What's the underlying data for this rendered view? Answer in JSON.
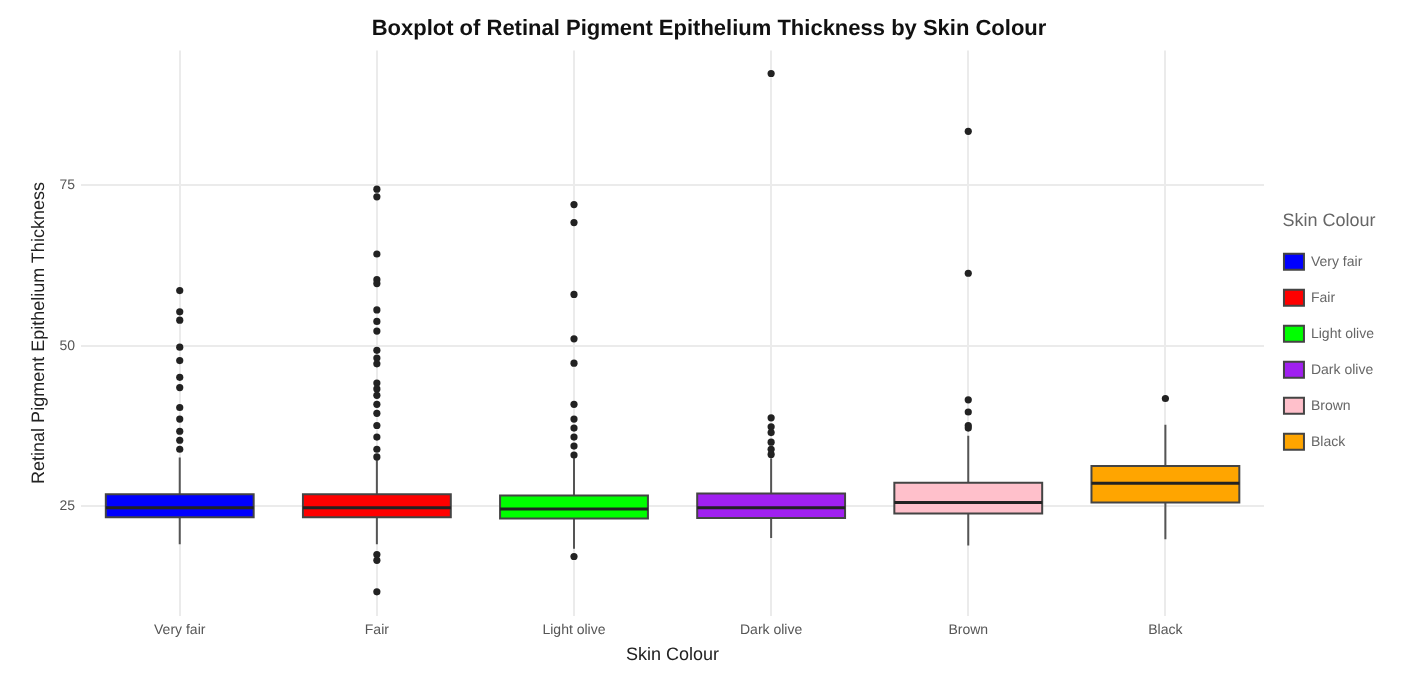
{
  "chart_data": {
    "type": "box",
    "title": "Boxplot of Retinal Pigment Epithelium Thickness by Skin Colour",
    "xlabel": "Skin Colour",
    "ylabel": "Retinal Pigment Epithelium Thickness",
    "legend_title": "Skin Colour",
    "legend": "right",
    "grid": true,
    "categories": [
      "Very fair",
      "Fair",
      "Light olive",
      "Dark olive",
      "Brown",
      "Black"
    ],
    "ylim": [
      8,
      96
    ],
    "yticks": [
      25,
      50,
      75
    ],
    "series": [
      {
        "name": "Very fair",
        "color": "#0000ff",
        "boxes": [
          {
            "low": 19.1,
            "q1": 23.3,
            "median": 24.8,
            "q3": 26.9,
            "high": 32.6,
            "outliers": [
              58.6,
              55.3,
              54,
              49.8,
              47.7,
              45.1,
              43.5,
              40.4,
              38.6,
              36.7,
              35.3,
              33.9
            ]
          },
          null,
          null,
          null,
          null,
          null
        ]
      },
      {
        "name": "Fair",
        "color": "#ff0000",
        "boxes": [
          null,
          {
            "low": 19.1,
            "q1": 23.3,
            "median": 24.8,
            "q3": 26.9,
            "high": 32.3,
            "outliers": [
              74.4,
              73.2,
              64.3,
              60.3,
              59.7,
              55.6,
              53.8,
              52.3,
              49.3,
              48.1,
              47.2,
              44.2,
              43.3,
              42.3,
              40.9,
              39.5,
              37.6,
              35.8,
              33.9,
              32.7,
              17.5,
              16.6,
              11.7
            ]
          },
          null,
          null,
          null,
          null
        ]
      },
      {
        "name": "Light olive",
        "color": "#00ff00",
        "boxes": [
          null,
          null,
          {
            "low": 18.4,
            "q1": 23.1,
            "median": 24.6,
            "q3": 26.7,
            "high": 32.5,
            "outliers": [
              72,
              69.2,
              58,
              51.1,
              47.3,
              40.9,
              38.6,
              37.2,
              35.8,
              34.4,
              33,
              17.2
            ]
          },
          null,
          null,
          null
        ]
      },
      {
        "name": "Dark olive",
        "color": "#a020f0",
        "boxes": [
          null,
          null,
          null,
          {
            "low": 20.1,
            "q1": 23.2,
            "median": 24.8,
            "q3": 27,
            "high": 32.5,
            "outliers": [
              92.4,
              38.8,
              37.4,
              36.5,
              35,
              33.9,
              33.1
            ]
          },
          null,
          null
        ]
      },
      {
        "name": "Brown",
        "color": "#ffc0cb",
        "boxes": [
          null,
          null,
          null,
          null,
          {
            "low": 18.9,
            "q1": 23.9,
            "median": 25.6,
            "q3": 28.7,
            "high": 36,
            "outliers": [
              83.4,
              61.3,
              41.6,
              39.7,
              37.6,
              37.2
            ]
          },
          null
        ]
      },
      {
        "name": "Black",
        "color": "#ffa500",
        "boxes": [
          null,
          null,
          null,
          null,
          null,
          {
            "low": 19.9,
            "q1": 25.6,
            "median": 28.6,
            "q3": 31.3,
            "high": 37.7,
            "outliers": [
              41.8
            ]
          }
        ]
      }
    ]
  }
}
